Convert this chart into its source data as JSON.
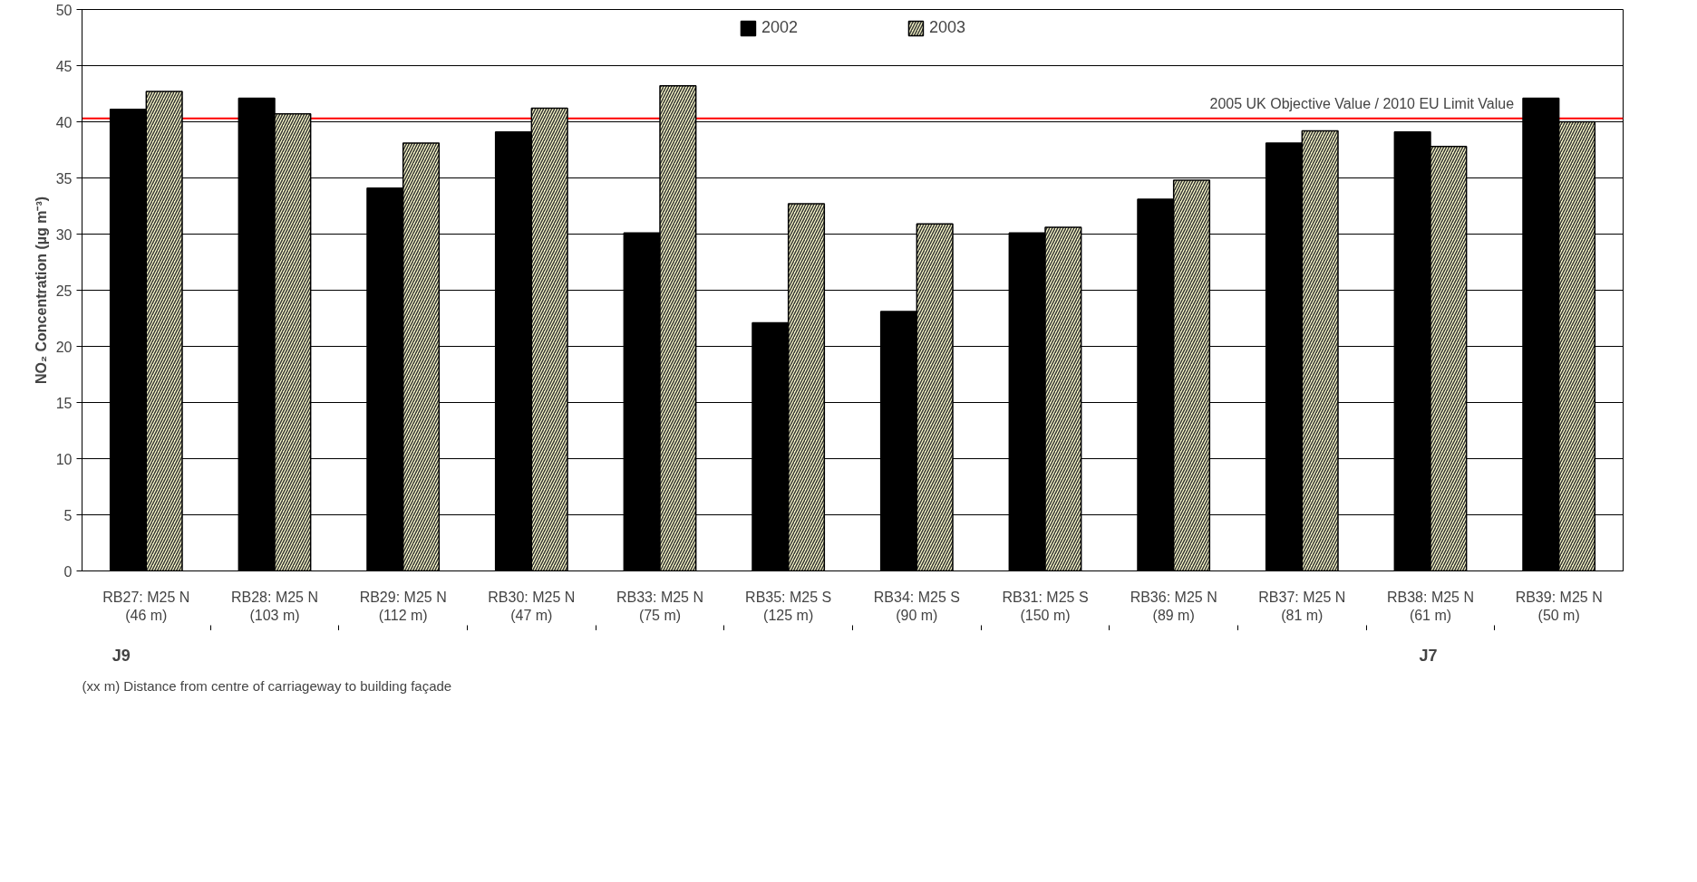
{
  "chart_data": {
    "type": "bar",
    "ylabel": "NO₂ Concentration (µg m⁻³)",
    "categories": [
      "RB27: M25 N\n(46 m)",
      "RB28: M25 N\n(103 m)",
      "RB29: M25 N\n(112 m)",
      "RB30: M25 N\n(47 m)",
      "RB33: M25 N\n(75 m)",
      "RB35: M25 S\n(125 m)",
      "RB34: M25 S\n(90 m)",
      "RB31: M25 S\n(150 m)",
      "RB36: M25 N\n(89 m)",
      "RB37: M25 N\n(81 m)",
      "RB38: M25 N\n(61 m)",
      "RB39: M25 N\n(50 m)"
    ],
    "series": [
      {
        "name": "2002",
        "color": "#000000",
        "values": [
          41.1,
          42.1,
          34.1,
          39.1,
          30.1,
          22.1,
          23.1,
          30.1,
          33.1,
          38.1,
          39.1,
          42.1
        ]
      },
      {
        "name": "2003",
        "color": "#ffffcc",
        "values": [
          42.7,
          40.7,
          38.1,
          41.2,
          43.2,
          32.7,
          30.9,
          30.6,
          34.8,
          39.2,
          37.8,
          40.0
        ]
      }
    ],
    "ylim": [
      0,
      50
    ],
    "yticks": [
      0,
      5,
      10,
      15,
      20,
      25,
      30,
      35,
      40,
      45,
      50
    ],
    "grid": "y",
    "legend": "top",
    "ref_lines": [
      {
        "axis": "y",
        "value": 40.3,
        "label": "2005 UK Objective Value / 2010 EU Limit Value",
        "color": "#ff0000"
      }
    ],
    "annotations": [
      "J9",
      "J7",
      "(xx m) Distance from centre of carriageway to building façade"
    ]
  }
}
